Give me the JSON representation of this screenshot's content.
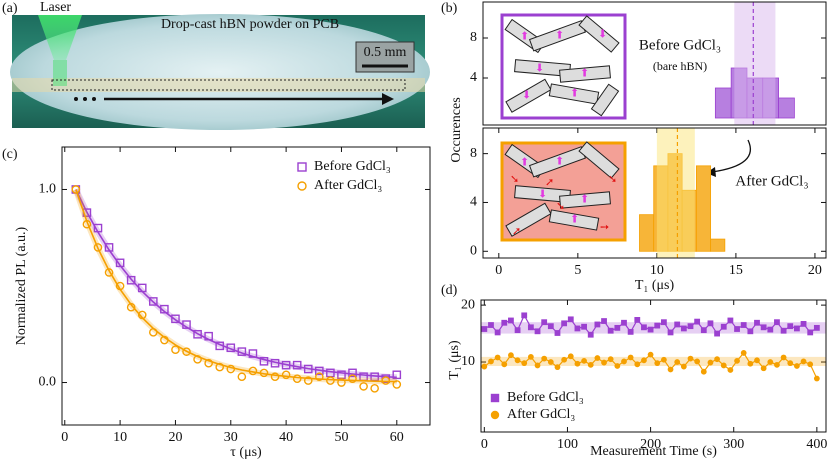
{
  "panel_labels": [
    "(a)",
    "(b)",
    "(c)",
    "(d)"
  ],
  "photo": {
    "laser_label": "Laser",
    "caption": "Drop-cast hBN powder on PCB",
    "scale_bar": "0.5 mm"
  },
  "chart_data": [
    {
      "type": "scatter",
      "x_label": "τ (μs)",
      "y_label": "Normalized PL (a.u.)",
      "xlim": [
        -0.5,
        66
      ],
      "ylim": [
        -0.22,
        1.22
      ],
      "xticks": [
        0,
        10,
        20,
        30,
        40,
        50,
        60
      ],
      "yticks": [
        {
          "value": 0,
          "label": "0.0"
        },
        {
          "value": 1,
          "label": "1.0"
        }
      ],
      "x": [
        2,
        4,
        6,
        8,
        10,
        12,
        14,
        16,
        18,
        20,
        22,
        24,
        26,
        28,
        30,
        32,
        34,
        36,
        38,
        40,
        42,
        44,
        46,
        48,
        50,
        52,
        54,
        56,
        58,
        60
      ],
      "series": [
        {
          "name": "Before GdCl₃",
          "color": "#9b40d0",
          "marker": "square",
          "values": [
            1.0,
            0.88,
            0.8,
            0.7,
            0.62,
            0.53,
            0.49,
            0.42,
            0.38,
            0.33,
            0.3,
            0.25,
            0.24,
            0.19,
            0.18,
            0.16,
            0.15,
            0.11,
            0.1,
            0.09,
            0.09,
            0.07,
            0.06,
            0.05,
            0.04,
            0.05,
            0.03,
            0.03,
            0.02,
            0.04
          ],
          "fit": [
            1.0,
            0.882,
            0.779,
            0.687,
            0.607,
            0.535,
            0.472,
            0.417,
            0.368,
            0.325,
            0.287,
            0.253,
            0.223,
            0.197,
            0.174,
            0.153,
            0.135,
            0.119,
            0.105,
            0.093,
            0.082,
            0.072,
            0.064,
            0.056,
            0.05,
            0.044,
            0.039,
            0.034,
            0.03,
            0.027
          ]
        },
        {
          "name": "After GdCl₃",
          "color": "#f5a000",
          "marker": "circle",
          "values": [
            1.0,
            0.82,
            0.7,
            0.57,
            0.5,
            0.39,
            0.35,
            0.26,
            0.22,
            0.17,
            0.16,
            0.12,
            0.1,
            0.08,
            0.07,
            0.03,
            0.06,
            0.05,
            0.03,
            0.04,
            0.02,
            0.01,
            0.03,
            0.01,
            0.0,
            0.02,
            -0.02,
            -0.03,
            0.01,
            -0.01
          ],
          "fit": [
            1.0,
            0.834,
            0.695,
            0.58,
            0.483,
            0.403,
            0.336,
            0.28,
            0.234,
            0.195,
            0.162,
            0.135,
            0.113,
            0.094,
            0.078,
            0.065,
            0.055,
            0.045,
            0.038,
            0.032,
            0.026,
            0.022,
            0.018,
            0.015,
            0.013,
            0.011,
            0.009,
            0.007,
            0.006,
            0.005
          ]
        }
      ]
    },
    {
      "type": "histogram",
      "y_label": "Occurences",
      "annotations": [
        "Before GdCl₃",
        "(bare hBN)"
      ],
      "xlim": [
        -1,
        20.7
      ],
      "ylim": [
        -0.7,
        11.6
      ],
      "yticks": [
        4,
        8
      ],
      "bins": [
        13.7,
        14.7,
        15.7,
        16.7,
        17.7,
        18.7
      ],
      "counts": [
        3,
        5,
        4,
        4,
        2
      ],
      "color": "#b77fe0",
      "edge_color": "#9b40d0",
      "band_color": "#d9b8ee",
      "mean": 16.1,
      "band": [
        14.9,
        17.5
      ]
    },
    {
      "type": "histogram",
      "x_label": "T₁ (μs)",
      "annotations": [
        "After GdCl₃"
      ],
      "xlim": [
        -1,
        20.7
      ],
      "ylim": [
        -0.55,
        10.1
      ],
      "xticks": [
        0,
        5,
        10,
        15,
        20
      ],
      "yticks": [
        0,
        4,
        8
      ],
      "bins": [
        8.9,
        9.8,
        10.7,
        11.6,
        12.5,
        13.4,
        14.3
      ],
      "counts": [
        3,
        7,
        8,
        5,
        7,
        1
      ],
      "color": "#f7b538",
      "edge_color": "#f5a000",
      "band_color": "#fbe57a",
      "mean": 11.3,
      "band": [
        10.0,
        12.4
      ]
    },
    {
      "type": "line",
      "x_label": "Measurement Time (s)",
      "y_label": "T₁ (μs)",
      "xlim": [
        -4,
        411
      ],
      "ylim": [
        -2.3,
        20.9
      ],
      "xticks": [
        0,
        100,
        200,
        300,
        400
      ],
      "yticks": [
        10,
        20
      ],
      "x": [
        0,
        8,
        16,
        24,
        32,
        40,
        48,
        56,
        64,
        72,
        80,
        88,
        96,
        104,
        112,
        120,
        128,
        136,
        144,
        152,
        160,
        168,
        176,
        184,
        192,
        200,
        208,
        216,
        224,
        232,
        240,
        248,
        256,
        264,
        272,
        280,
        288,
        296,
        304,
        312,
        320,
        328,
        336,
        344,
        352,
        360,
        368,
        376,
        384,
        392,
        400
      ],
      "series": [
        {
          "name": "Before GdCl₃",
          "color": "#9b40d0",
          "marker": "square",
          "band": [
            15.0,
            17.0
          ],
          "values": [
            15.8,
            16.5,
            15.2,
            16.9,
            17.3,
            15.6,
            18.2,
            16.1,
            15.4,
            17.0,
            16.3,
            15.1,
            16.8,
            17.5,
            15.9,
            16.2,
            14.8,
            16.6,
            17.2,
            15.5,
            16.0,
            16.9,
            15.3,
            17.4,
            16.1,
            15.7,
            16.4,
            17.0,
            15.2,
            16.6,
            15.9,
            16.3,
            17.1,
            15.6,
            16.8,
            15.0,
            16.2,
            17.3,
            15.8,
            16.5,
            15.4,
            16.9,
            16.1,
            15.7,
            17.0,
            15.5,
            16.3,
            15.9,
            16.7,
            15.2,
            16.0
          ]
        },
        {
          "name": "After GdCl₃",
          "color": "#f5a000",
          "marker": "circle",
          "band": [
            9.3,
            10.9
          ],
          "values": [
            9.2,
            10.1,
            10.8,
            9.6,
            11.2,
            10.3,
            9.8,
            10.9,
            9.4,
            10.6,
            10.0,
            9.1,
            10.4,
            11.0,
            9.7,
            10.2,
            9.5,
            10.7,
            9.9,
            10.5,
            9.3,
            10.1,
            10.8,
            9.6,
            10.3,
            11.3,
            9.8,
            10.4,
            8.7,
            10.0,
            9.2,
            10.6,
            10.1,
            8.3,
            9.9,
            10.5,
            9.4,
            8.6,
            10.2,
            11.6,
            9.7,
            10.3,
            8.9,
            10.0,
            9.5,
            10.8,
            9.8,
            9.3,
            10.1,
            9.6,
            7.1
          ]
        }
      ]
    }
  ]
}
